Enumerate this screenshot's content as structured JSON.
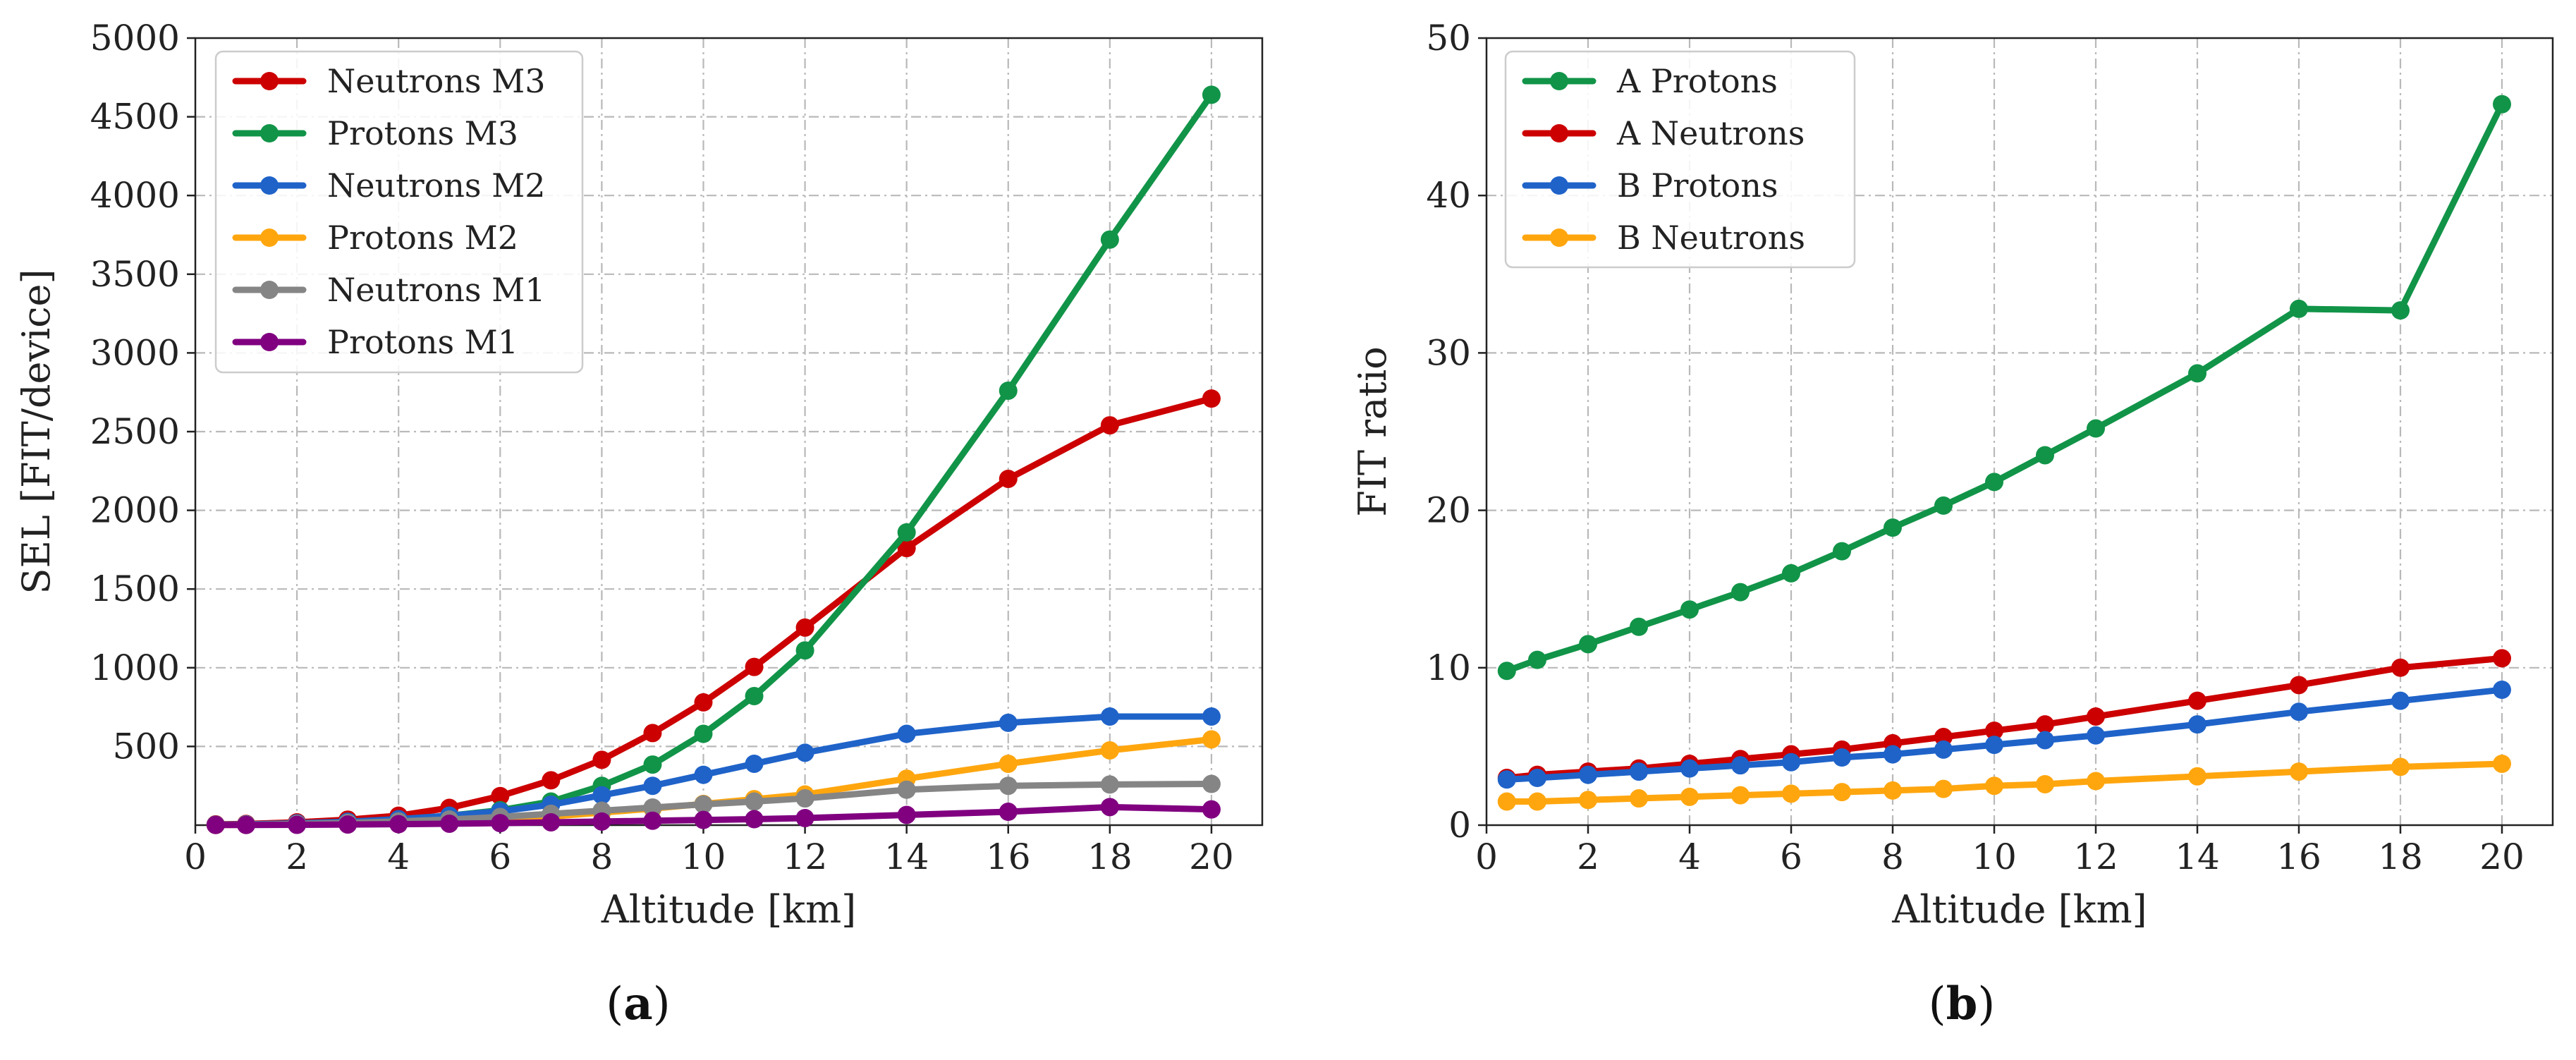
{
  "chart_data": [
    {
      "panel": "a",
      "type": "line",
      "caption": "(a)",
      "caption_letter": "a",
      "xlabel": "Altitude [km]",
      "ylabel": "SEL [FIT/device]",
      "xlim": [
        0,
        21
      ],
      "ylim": [
        0,
        5000
      ],
      "xticks": [
        0,
        2,
        4,
        6,
        8,
        10,
        12,
        14,
        16,
        18,
        20
      ],
      "yticks": [
        500,
        1000,
        1500,
        2000,
        2500,
        3000,
        3500,
        4000,
        4500,
        5000
      ],
      "grid": true,
      "legend_position": "upper-left",
      "x": [
        0.4,
        1,
        2,
        3,
        4,
        5,
        6,
        7,
        8,
        9,
        10,
        11,
        12,
        14,
        16,
        18,
        20
      ],
      "series": [
        {
          "name": "Neutrons M3",
          "color": "#cc0000",
          "values": [
            5,
            8,
            18,
            35,
            60,
            110,
            185,
            285,
            415,
            585,
            780,
            1005,
            1255,
            1760,
            2200,
            2540,
            2710
          ]
        },
        {
          "name": "Protons M3",
          "color": "#119448",
          "values": [
            2,
            4,
            10,
            20,
            35,
            60,
            95,
            150,
            250,
            385,
            580,
            820,
            1110,
            1860,
            2760,
            3720,
            4640
          ]
        },
        {
          "name": "Neutrons M2",
          "color": "#1f63c9",
          "values": [
            3,
            5,
            12,
            22,
            38,
            60,
            88,
            130,
            190,
            250,
            320,
            390,
            460,
            580,
            650,
            690,
            690
          ]
        },
        {
          "name": "Protons M2",
          "color": "#ffa60f",
          "values": [
            1,
            2,
            5,
            9,
            15,
            25,
            38,
            55,
            80,
            105,
            135,
            165,
            195,
            295,
            390,
            475,
            545
          ]
        },
        {
          "name": "Neutrons M1",
          "color": "#858585",
          "values": [
            2,
            3,
            8,
            14,
            24,
            36,
            52,
            72,
            92,
            112,
            132,
            150,
            170,
            225,
            250,
            258,
            262
          ]
        },
        {
          "name": "Protons M1",
          "color": "#800080",
          "values": [
            1,
            1,
            2,
            4,
            6,
            9,
            13,
            18,
            23,
            28,
            33,
            38,
            45,
            65,
            85,
            115,
            100
          ]
        }
      ]
    },
    {
      "panel": "b",
      "type": "line",
      "caption": "(b)",
      "caption_letter": "b",
      "xlabel": "Altitude [km]",
      "ylabel": "FIT ratio",
      "xlim": [
        0,
        21
      ],
      "ylim": [
        0,
        50
      ],
      "xticks": [
        0,
        2,
        4,
        6,
        8,
        10,
        12,
        14,
        16,
        18,
        20
      ],
      "yticks": [
        0,
        10,
        20,
        30,
        40,
        50
      ],
      "grid": true,
      "legend_position": "upper-left",
      "x": [
        0.4,
        1,
        2,
        3,
        4,
        5,
        6,
        7,
        8,
        9,
        10,
        11,
        12,
        14,
        16,
        18,
        20
      ],
      "series": [
        {
          "name": "A Protons",
          "color": "#119448",
          "values": [
            9.8,
            10.5,
            11.5,
            12.6,
            13.7,
            14.8,
            16.0,
            17.4,
            18.9,
            20.3,
            21.8,
            23.5,
            25.2,
            28.7,
            32.8,
            32.7,
            45.8
          ]
        },
        {
          "name": "A Neutrons",
          "color": "#cc0000",
          "values": [
            3.0,
            3.2,
            3.4,
            3.6,
            3.9,
            4.2,
            4.5,
            4.8,
            5.2,
            5.6,
            6.0,
            6.4,
            6.9,
            7.9,
            8.9,
            10.0,
            10.6
          ]
        },
        {
          "name": "B Protons",
          "color": "#1f63c9",
          "values": [
            2.9,
            3.0,
            3.2,
            3.4,
            3.6,
            3.8,
            4.0,
            4.3,
            4.5,
            4.8,
            5.1,
            5.4,
            5.7,
            6.4,
            7.2,
            7.9,
            8.6
          ]
        },
        {
          "name": "B Neutrons",
          "color": "#ffa60f",
          "values": [
            1.5,
            1.5,
            1.6,
            1.7,
            1.8,
            1.9,
            2.0,
            2.1,
            2.2,
            2.3,
            2.5,
            2.6,
            2.8,
            3.1,
            3.4,
            3.7,
            3.9
          ]
        }
      ]
    }
  ]
}
